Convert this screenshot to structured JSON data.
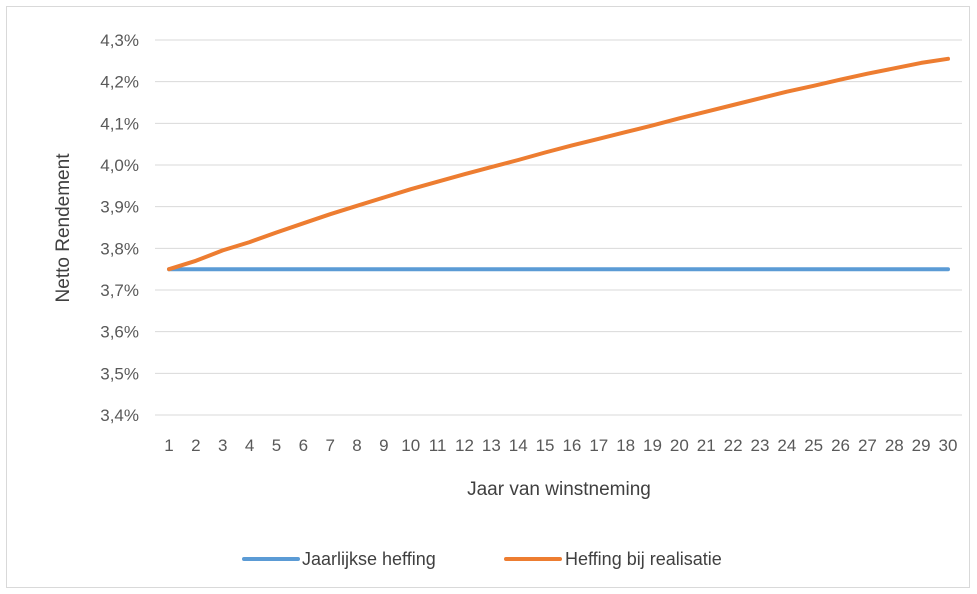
{
  "chart_data": {
    "type": "line",
    "title": "",
    "xlabel": "Jaar van winstneming",
    "ylabel": "Netto Rendement",
    "categories": [
      "1",
      "2",
      "3",
      "4",
      "5",
      "6",
      "7",
      "8",
      "9",
      "10",
      "11",
      "12",
      "13",
      "14",
      "15",
      "16",
      "17",
      "18",
      "19",
      "20",
      "21",
      "22",
      "23",
      "24",
      "25",
      "26",
      "27",
      "28",
      "29",
      "30"
    ],
    "y_ticks": [
      "3,4%",
      "3,5%",
      "3,6%",
      "3,7%",
      "3,8%",
      "3,9%",
      "4,0%",
      "4,1%",
      "4,2%",
      "4,3%"
    ],
    "ylim": [
      3.4,
      4.3
    ],
    "grid": true,
    "legend_position": "bottom",
    "series": [
      {
        "name": "Jaarlijkse heffing",
        "color": "#5b9bd5",
        "values": [
          3.75,
          3.75,
          3.75,
          3.75,
          3.75,
          3.75,
          3.75,
          3.75,
          3.75,
          3.75,
          3.75,
          3.75,
          3.75,
          3.75,
          3.75,
          3.75,
          3.75,
          3.75,
          3.75,
          3.75,
          3.75,
          3.75,
          3.75,
          3.75,
          3.75,
          3.75,
          3.75,
          3.75,
          3.75,
          3.75
        ]
      },
      {
        "name": "Heffing bij realisatie",
        "color": "#ed7d31",
        "values": [
          3.75,
          3.77,
          3.795,
          3.815,
          3.838,
          3.86,
          3.882,
          3.902,
          3.922,
          3.942,
          3.96,
          3.978,
          3.995,
          4.012,
          4.03,
          4.047,
          4.063,
          4.079,
          4.095,
          4.112,
          4.128,
          4.144,
          4.16,
          4.176,
          4.19,
          4.205,
          4.219,
          4.232,
          4.245,
          4.255
        ]
      }
    ]
  }
}
